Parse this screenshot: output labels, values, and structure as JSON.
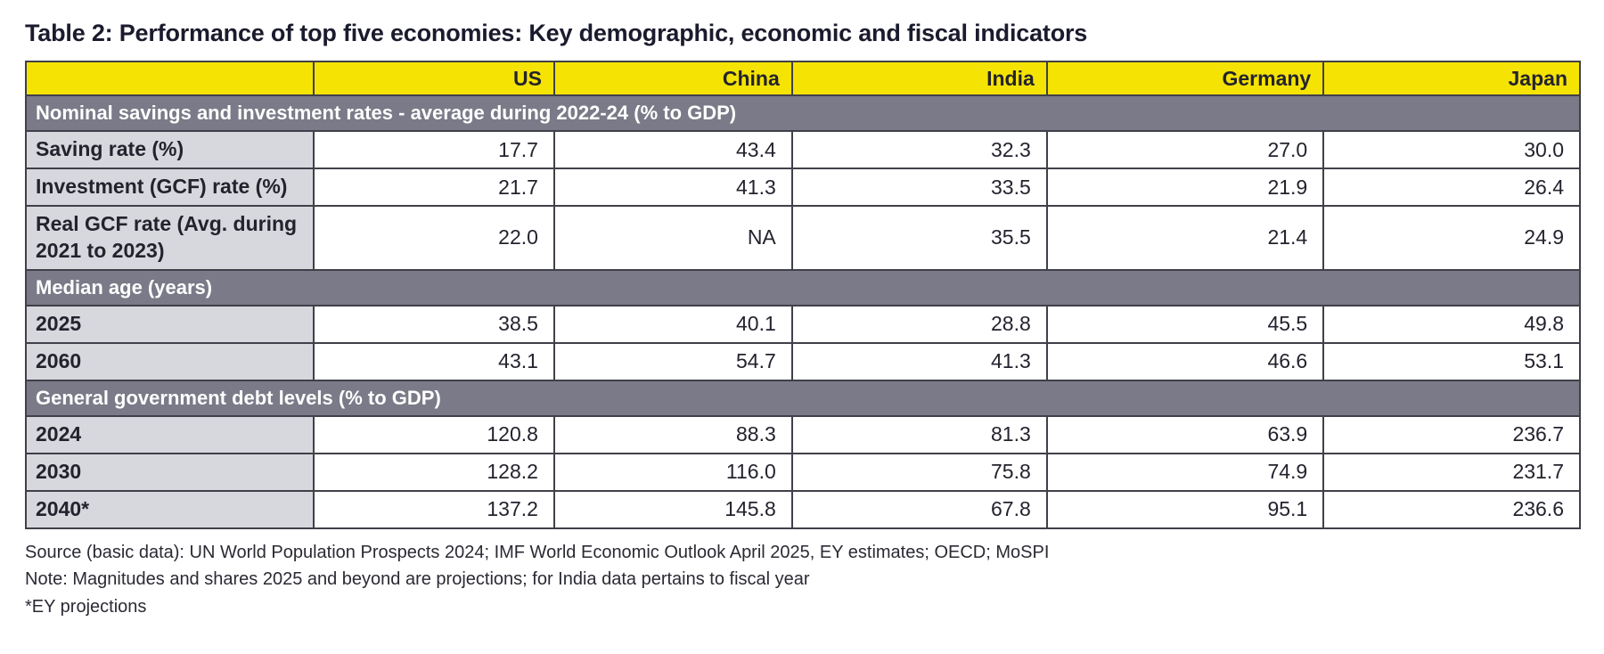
{
  "title": "Table 2: Performance of top five economies: Key demographic, economic and fiscal indicators",
  "chart_data": {
    "type": "table",
    "title": "Table 2: Performance of top five economies: Key demographic, economic and fiscal indicators",
    "columns": [
      "",
      "US",
      "China",
      "India",
      "Germany",
      "Japan"
    ],
    "sections": [
      {
        "header": "Nominal savings and investment rates - average during 2022-24 (% to GDP)",
        "rows": [
          {
            "label": "Saving rate (%)",
            "values": [
              "17.7",
              "43.4",
              "32.3",
              "27.0",
              "30.0"
            ]
          },
          {
            "label": "Investment (GCF) rate (%)",
            "values": [
              "21.7",
              "41.3",
              "33.5",
              "21.9",
              "26.4"
            ]
          },
          {
            "label": "Real GCF rate (Avg. during  2021 to 2023)",
            "values": [
              "22.0",
              "NA",
              "35.5",
              "21.4",
              "24.9"
            ]
          }
        ]
      },
      {
        "header": "Median age (years)",
        "rows": [
          {
            "label": "2025",
            "values": [
              "38.5",
              "40.1",
              "28.8",
              "45.5",
              "49.8"
            ]
          },
          {
            "label": "2060",
            "values": [
              "43.1",
              "54.7",
              "41.3",
              "46.6",
              "53.1"
            ]
          }
        ]
      },
      {
        "header": "General government debt levels (% to GDP)",
        "rows": [
          {
            "label": "2024",
            "values": [
              "120.8",
              "88.3",
              "81.3",
              "63.9",
              "236.7"
            ]
          },
          {
            "label": "2030",
            "values": [
              "128.2",
              "116.0",
              "75.8",
              "74.9",
              "231.7"
            ]
          },
          {
            "label": "2040*",
            "values": [
              "137.2",
              "145.8",
              "67.8",
              "95.1",
              "236.6"
            ]
          }
        ]
      }
    ]
  },
  "footnotes": [
    "Source (basic data): UN World Population Prospects 2024; IMF World Economic Outlook April 2025, EY estimates; OECD; MoSPI",
    "Note: Magnitudes and shares 2025 and beyond are projections; for India data pertains to fiscal year",
    "*EY projections"
  ],
  "colors": {
    "header_bg": "#f5e303",
    "section_band_bg": "#7a7a88",
    "row_label_bg": "#d7d7de",
    "border": "#40404a",
    "text": "#23232e",
    "section_text": "#ffffff"
  }
}
